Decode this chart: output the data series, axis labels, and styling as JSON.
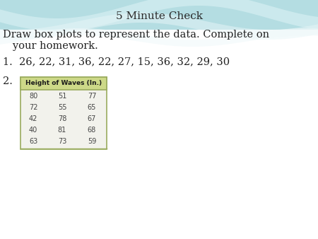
{
  "title": "5 Minute Check",
  "title_color": "#2b2b2b",
  "title_fontsize": 11,
  "body_line1": "Draw box plots to represent the data. Complete on",
  "body_line2": "   your homework.",
  "body_fontsize": 10.5,
  "item1_label": "1.",
  "item1_text": "  26, 22, 31, 36, 22, 27, 15, 36, 32, 29, 30",
  "item1_fontsize": 10.5,
  "item2_label": "2.",
  "item2_fontsize": 10.5,
  "table_header": "Height of Waves (In.)",
  "table_header_bg": "#cdd988",
  "table_border_color": "#9aab5e",
  "table_data": [
    [
      80,
      51,
      77
    ],
    [
      72,
      55,
      65
    ],
    [
      42,
      78,
      67
    ],
    [
      40,
      81,
      68
    ],
    [
      63,
      73,
      59
    ]
  ],
  "table_bg": "#f2f2ec",
  "bg_teal_dark": "#8ecdd4",
  "bg_teal_light": "#c8e9ec",
  "bg_white": "#ffffff",
  "text_color": "#222222"
}
